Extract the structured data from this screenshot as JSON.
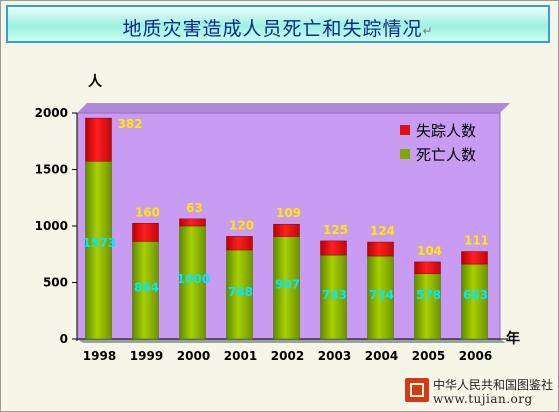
{
  "title": "地质灾害造成人员死亡和失踪情况",
  "title_mark": "↵",
  "chart_data": {
    "type": "bar",
    "stacked": true,
    "title": "地质灾害造成人员死亡和失踪情况",
    "xlabel": "年",
    "ylabel": "人",
    "ylim": [
      0,
      2000
    ],
    "yticks": [
      0,
      500,
      1000,
      1500,
      2000
    ],
    "categories": [
      "1998",
      "1999",
      "2000",
      "2001",
      "2002",
      "2003",
      "2004",
      "2005",
      "2006"
    ],
    "series": [
      {
        "name": "死亡人数",
        "values": [
          1573,
          864,
          1000,
          788,
          907,
          743,
          734,
          578,
          663
        ],
        "color": "#7fa800"
      },
      {
        "name": "失踪人数",
        "values": [
          382,
          160,
          63,
          120,
          109,
          125,
          124,
          104,
          111
        ],
        "color": "#e01010"
      }
    ],
    "legend_position": "top-right",
    "plot_background": "#c89cf2",
    "grid": false
  },
  "legend": [
    {
      "label": "失踪人数",
      "color": "#e01010"
    },
    {
      "label": "死亡人数",
      "color": "#7fa800"
    }
  ],
  "watermark": {
    "name": "中华人民共和国图鉴社",
    "url": "www.tujian.org"
  }
}
